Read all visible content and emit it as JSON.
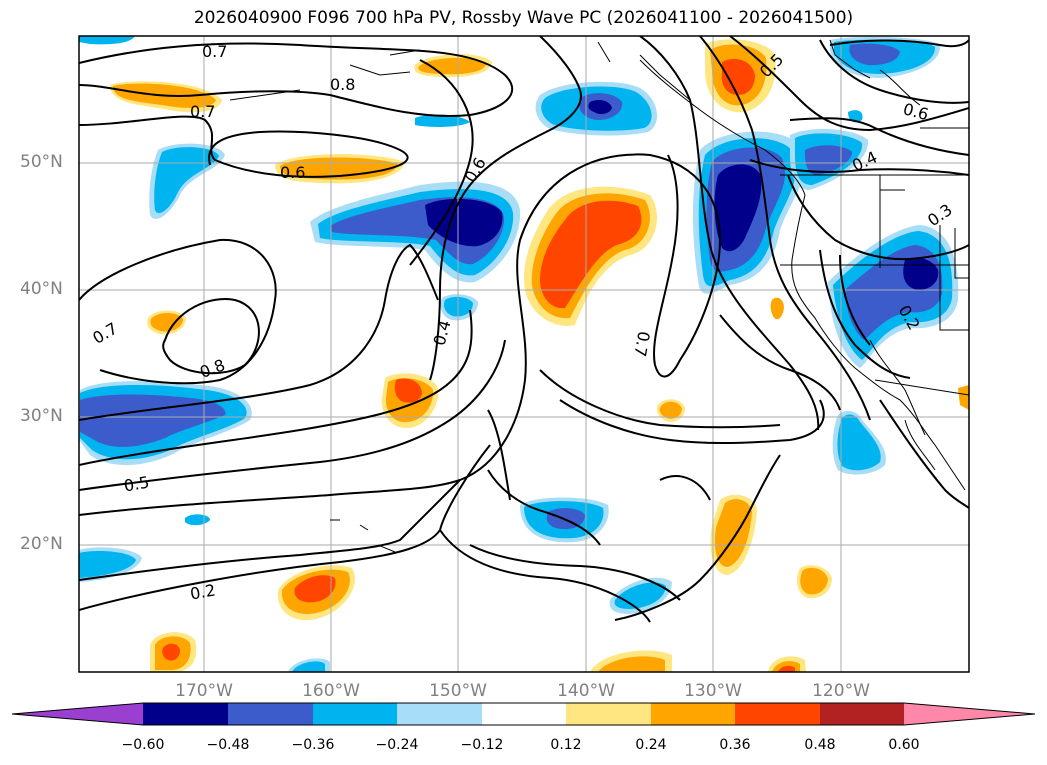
{
  "title": "2026040900 F096 700 hPa PV, Rossby Wave PC (2026041100 - 2026041500)",
  "lat_labels": [
    "50°N",
    "40°N",
    "30°N",
    "20°N"
  ],
  "lon_labels": [
    "170°W",
    "160°W",
    "150°W",
    "140°W",
    "130°W",
    "120°W"
  ],
  "contour_labels": [
    "0.7",
    "0.8",
    "0.7",
    "0.6",
    "0.6",
    "0.5",
    "0.6",
    "0.4",
    "0.3",
    "0.7",
    "0.8",
    "0.4",
    "0.7",
    "0.2",
    "0.5",
    "0.2"
  ],
  "colorbar": {
    "ticks": [
      "−0.60",
      "−0.48",
      "−0.36",
      "−0.24",
      "−0.12",
      "0.12",
      "0.24",
      "0.36",
      "0.48",
      "0.60"
    ],
    "colors": [
      "#9a3fcf",
      "#00008b",
      "#3c5ccc",
      "#00b4f0",
      "#a8ddf7",
      "#ffffff",
      "#ffe680",
      "#ffa500",
      "#ff4500",
      "#b22222",
      "#ff88aa"
    ]
  },
  "colors": {
    "deep_blue": "#00008b",
    "mid_blue": "#3c5ccc",
    "sky_blue": "#00b4f0",
    "light_blue": "#a8ddf7",
    "light_yellow": "#ffe680",
    "orange": "#ffa500",
    "red_orange": "#ff4500",
    "dark_red": "#b22222"
  }
}
